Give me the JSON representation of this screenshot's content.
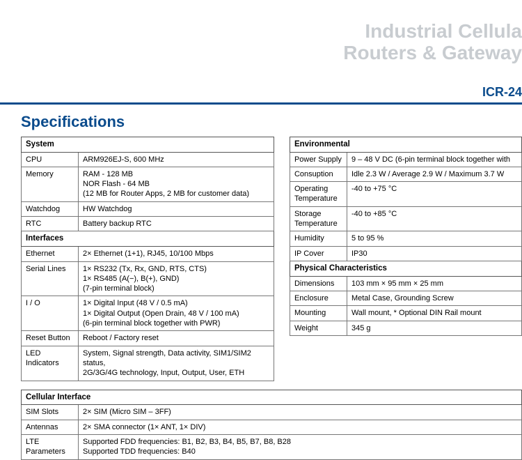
{
  "header": {
    "line1": "Industrial Cellula",
    "line2": "Routers & Gateway"
  },
  "model": "ICR-24",
  "section_title": "Specifications",
  "left_table": {
    "groups": [
      {
        "title": "System",
        "rows": [
          {
            "label": "CPU",
            "value": "ARM926EJ-S, 600 MHz"
          },
          {
            "label": "Memory",
            "value": "RAM - 128 MB\nNOR Flash - 64 MB\n(12 MB for Router Apps, 2 MB for customer data)"
          },
          {
            "label": "Watchdog",
            "value": "HW Watchdog"
          },
          {
            "label": "RTC",
            "value": "Battery backup RTC"
          }
        ]
      },
      {
        "title": "Interfaces",
        "rows": [
          {
            "label": "Ethernet",
            "value": "2× Ethernet (1+1), RJ45, 10/100 Mbps"
          },
          {
            "label": "Serial Lines",
            "value": "1× RS232 (Tx, Rx, GND, RTS, CTS)\n1× RS485 (A(−), B(+), GND)\n(7-pin terminal block)"
          },
          {
            "label": "I / O",
            "value": "1× Digital Input (48 V / 0.5 mA)\n1× Digital Output (Open Drain, 48 V / 100 mA)\n(6-pin terminal block together with PWR)"
          },
          {
            "label": "Reset Button",
            "value": "Reboot / Factory reset"
          },
          {
            "label": "LED Indicators",
            "value": "System, Signal strength, Data activity, SIM1/SIM2 status,\n2G/3G/4G technology, Input, Output, User, ETH"
          }
        ]
      }
    ]
  },
  "right_table": {
    "groups": [
      {
        "title": "Environmental",
        "rows": [
          {
            "label": "Power Supply",
            "value": "9 – 48 V DC (6-pin terminal block together with"
          },
          {
            "label": "Consuption",
            "value": "Idle 2.3 W / Average 2.9 W / Maximum 3.7 W"
          },
          {
            "label": "Operating Temperature",
            "value": "-40 to +75 °C"
          },
          {
            "label": "Storage Temperature",
            "value": "-40 to +85 °C"
          },
          {
            "label": "Humidity",
            "value": "5 to 95 %"
          },
          {
            "label": "IP Cover",
            "value": "IP30"
          }
        ]
      },
      {
        "title": "Physical Characteristics",
        "rows": [
          {
            "label": "Dimensions",
            "value": "103 mm × 95 mm × 25 mm"
          },
          {
            "label": "Enclosure",
            "value": "Metal Case, Grounding Screw"
          },
          {
            "label": "Mounting",
            "value": "Wall mount, * Optional DIN Rail mount"
          },
          {
            "label": "Weight",
            "value": "345 g"
          }
        ]
      }
    ]
  },
  "bottom_table": {
    "groups": [
      {
        "title": "Cellular Interface",
        "rows": [
          {
            "label": "SIM Slots",
            "value": "2× SIM (Micro SIM – 3FF)"
          },
          {
            "label": "Antennas",
            "value": "2× SMA connector (1× ANT, 1× DIV)"
          },
          {
            "label": "LTE Parameters",
            "value": "Supported FDD frequencies: B1, B2, B3, B4, B5, B7, B8, B28\nSupported TDD frequencies: B40"
          }
        ]
      }
    ]
  }
}
